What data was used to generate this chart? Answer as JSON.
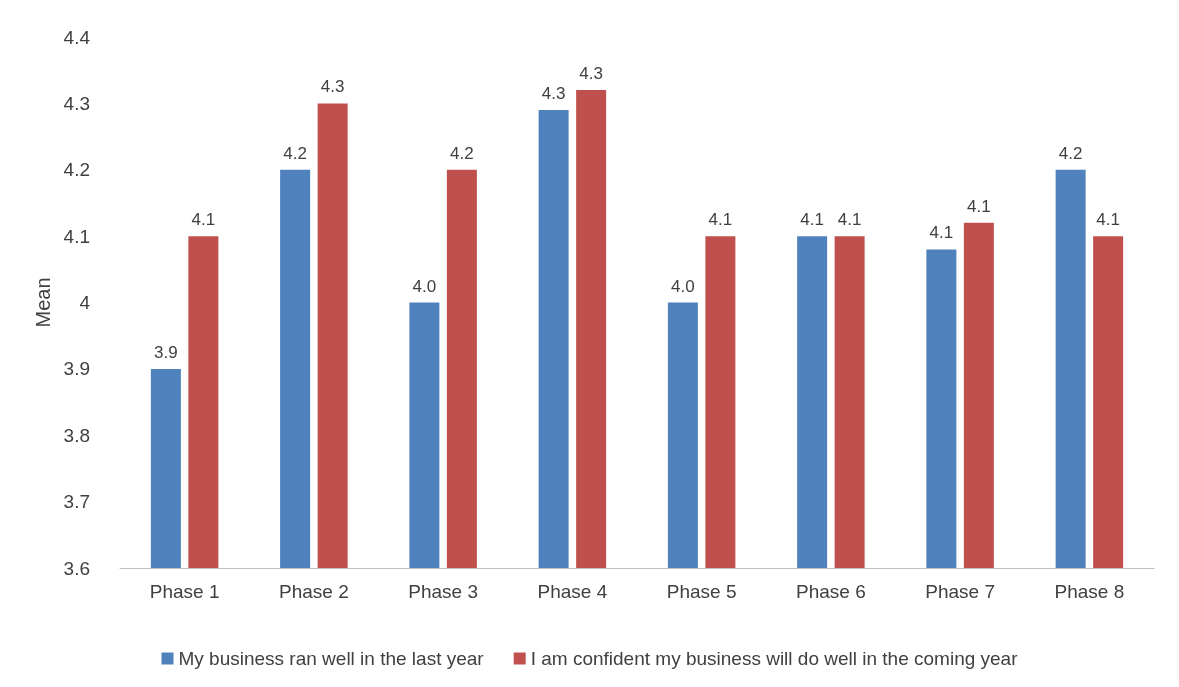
{
  "chart_data": {
    "type": "bar",
    "ylabel": "Mean",
    "categories": [
      "Phase 1",
      "Phase 2",
      "Phase 3",
      "Phase 4",
      "Phase 5",
      "Phase 6",
      "Phase 7",
      "Phase 8"
    ],
    "series": [
      {
        "name": "My business ran well in the last year",
        "color": "#4f81bd",
        "values": [
          3.9,
          4.2,
          4.0,
          4.29,
          4.0,
          4.1,
          4.08,
          4.2
        ],
        "value_labels": [
          "3.9",
          "4.2",
          "4.0",
          "4.3",
          "4.0",
          "4.1",
          "4.1",
          "4.2"
        ]
      },
      {
        "name": "I am confident my business will do well in the coming year",
        "color": "#c0504d",
        "values": [
          4.1,
          4.3,
          4.2,
          4.32,
          4.1,
          4.1,
          4.12,
          4.1
        ],
        "value_labels": [
          "4.1",
          "4.3",
          "4.2",
          "4.3",
          "4.1",
          "4.1",
          "4.1",
          "4.1"
        ]
      }
    ],
    "ylim": [
      3.6,
      4.4
    ],
    "yticks": [
      3.6,
      3.7,
      3.8,
      3.9,
      4,
      4.1,
      4.2,
      4.3,
      4.4
    ],
    "grid": false,
    "legend": "bottom"
  }
}
